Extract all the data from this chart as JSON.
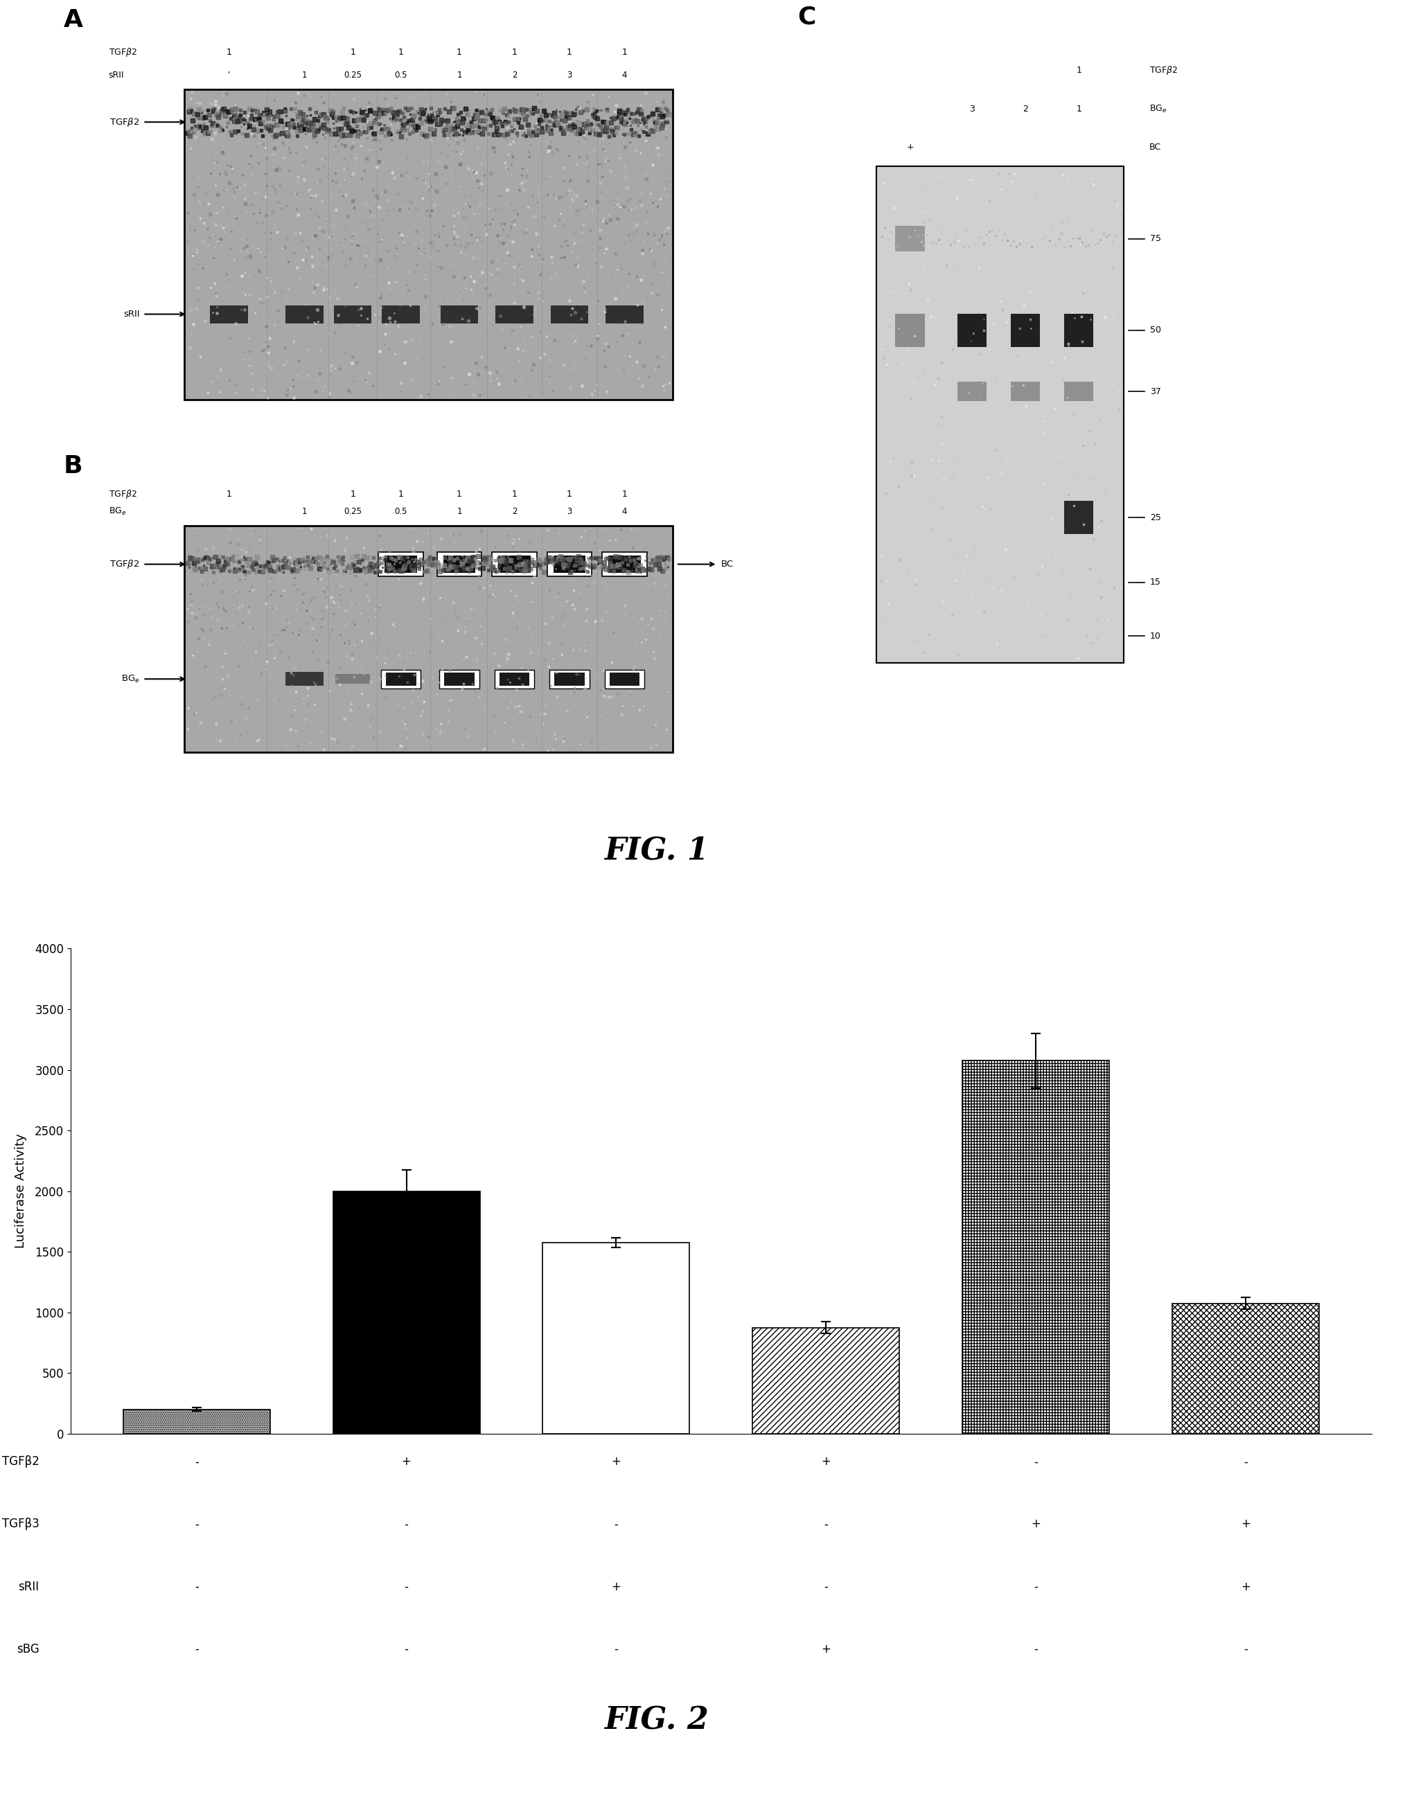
{
  "fig_width": 20.41,
  "fig_height": 26.16,
  "background_color": "#ffffff",
  "panel_A_row1_label": "TGFβ2",
  "panel_A_row1_values": [
    "1",
    "",
    "1",
    "1",
    "1",
    "1",
    "1",
    "1"
  ],
  "panel_A_row2_label": "sRII",
  "panel_A_row2_values": [
    "'",
    "1",
    "0.25",
    "0.5",
    "1",
    "2",
    "3",
    "4"
  ],
  "panel_B_row1_label": "TGFβ2",
  "panel_B_row1_values": [
    "1",
    "",
    "1",
    "1",
    "1",
    "1",
    "1",
    "1"
  ],
  "panel_B_row2_label": "BGₑ",
  "panel_B_row2_values": [
    "",
    "1",
    "0.25",
    "0.5",
    "1",
    "2",
    "3",
    "4"
  ],
  "panel_B_right_label": "BC",
  "panel_C_mw_labels": [
    "75",
    "50",
    "37",
    "25",
    "15",
    "10"
  ],
  "fig1_label": "FIG. 1",
  "bar_values": [
    200,
    2000,
    1575,
    875,
    3075,
    1075
  ],
  "bar_errors": [
    15,
    175,
    40,
    50,
    225,
    50
  ],
  "ylabel": "Luciferase Activity",
  "ylim": [
    0,
    4000
  ],
  "yticks": [
    0,
    500,
    1000,
    1500,
    2000,
    2500,
    3000,
    3500,
    4000
  ],
  "table_rows": [
    "TGFβ2",
    "TGFβ3",
    "sRII",
    "sBG"
  ],
  "table_data": [
    [
      "-",
      "+",
      "+",
      "+",
      "-",
      "-"
    ],
    [
      "-",
      "-",
      "-",
      "-",
      "+",
      "+"
    ],
    [
      "-",
      "-",
      "+",
      "-",
      "-",
      "+"
    ],
    [
      "-",
      "-",
      "-",
      "+",
      "-",
      "-"
    ]
  ],
  "fig2_label": "FIG. 2"
}
